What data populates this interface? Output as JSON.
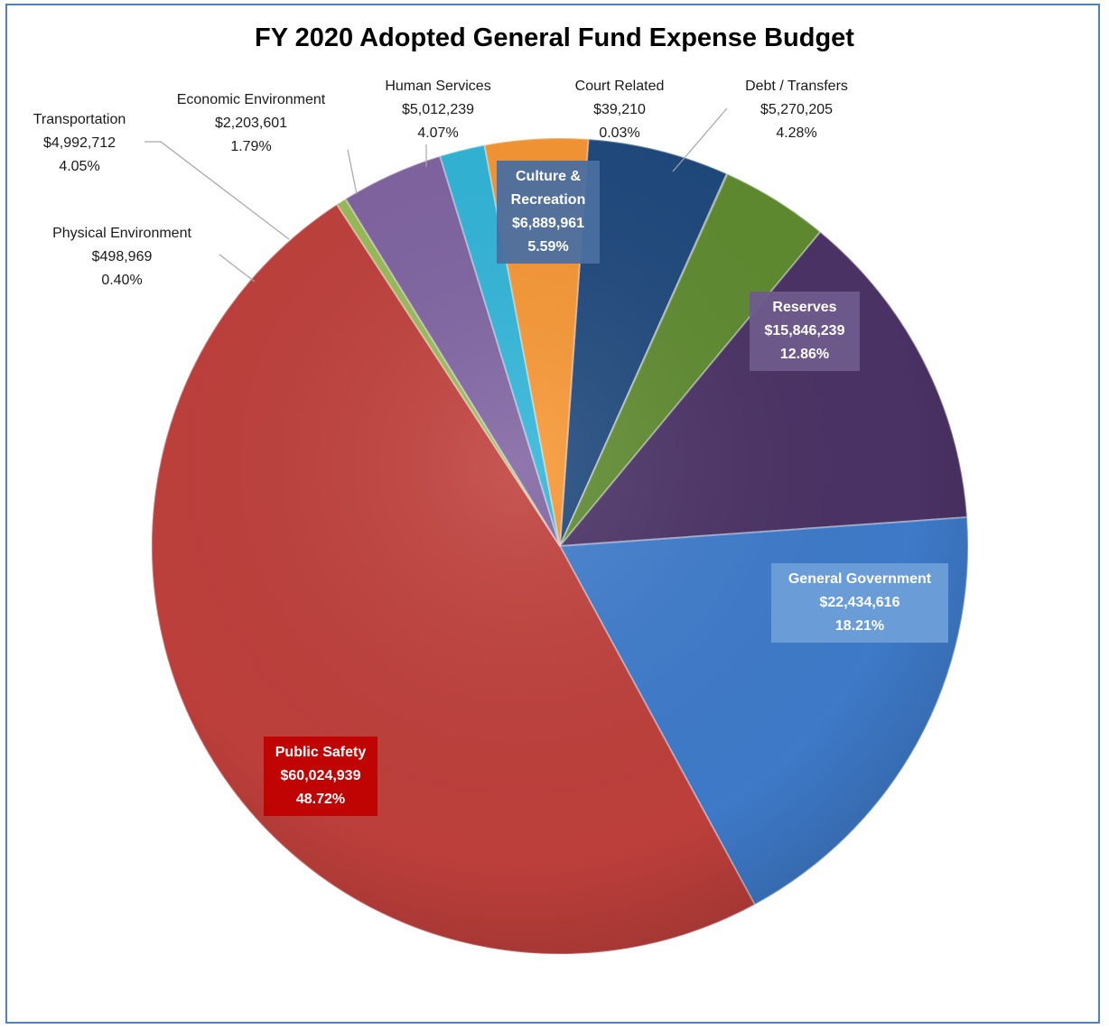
{
  "chart_data": {
    "type": "pie",
    "title": "FY 2020 Adopted General Fund Expense Budget",
    "slices": [
      {
        "name": "Culture & Recreation",
        "value": 6889961,
        "value_label": "$6,889,961",
        "pct_label": "5.59%",
        "color": "#1f497d",
        "label_bg": "#4a6fa0"
      },
      {
        "name": "Court Related",
        "value": 39210,
        "value_label": "$39,210",
        "pct_label": "0.03%",
        "color": "#4f6228"
      },
      {
        "name": "Debt / Transfers",
        "value": 5270205,
        "value_label": "$5,270,205",
        "pct_label": "4.28%",
        "color": "#5f8b30"
      },
      {
        "name": "Reserves",
        "value": 15846239,
        "value_label": "$15,846,239",
        "pct_label": "12.86%",
        "color": "#4b3366",
        "label_bg": "#6f5b8c"
      },
      {
        "name": "General Government",
        "value": 22434616,
        "value_label": "$22,434,616",
        "pct_label": "18.21%",
        "color": "#3f7ccc",
        "label_bg": "#6d9fd9"
      },
      {
        "name": "Public Safety",
        "value": 60024939,
        "value_label": "$60,024,939",
        "pct_label": "48.72%",
        "color": "#c0403c",
        "label_bg": "#c00000"
      },
      {
        "name": "Physical Environment",
        "value": 498969,
        "value_label": "$498,969",
        "pct_label": "0.40%",
        "color": "#9bbb59"
      },
      {
        "name": "Transportation",
        "value": 4992712,
        "value_label": "$4,992,712",
        "pct_label": "4.05%",
        "color": "#8064a2"
      },
      {
        "name": "Economic Environment",
        "value": 2203601,
        "value_label": "$2,203,601",
        "pct_label": "1.79%",
        "color": "#31b5d9"
      },
      {
        "name": "Human Services",
        "value": 5012239,
        "value_label": "$5,012,239",
        "pct_label": "4.07%",
        "color": "#f79633"
      }
    ]
  }
}
